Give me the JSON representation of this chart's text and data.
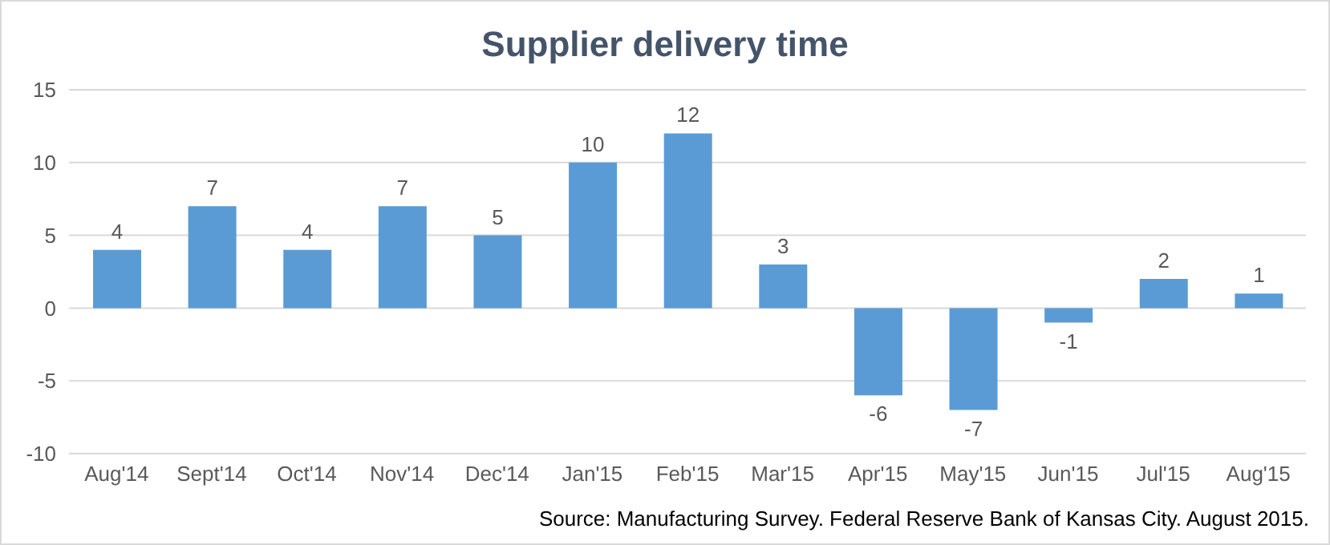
{
  "chart_data": {
    "type": "bar",
    "title": "Supplier delivery time",
    "categories": [
      "Aug'14",
      "Sept'14",
      "Oct'14",
      "Nov'14",
      "Dec'14",
      "Jan'15",
      "Feb'15",
      "Mar'15",
      "Apr'15",
      "May'15",
      "Jun'15",
      "Jul'15",
      "Aug'15"
    ],
    "values": [
      4,
      7,
      4,
      7,
      5,
      10,
      12,
      3,
      -6,
      -7,
      -1,
      2,
      1
    ],
    "color": "#5b9bd5",
    "ylim": [
      -10,
      15
    ],
    "yticks": [
      -10,
      -5,
      0,
      5,
      10,
      15
    ],
    "grid": "y",
    "data_labels": true,
    "annotations": [
      "Source: Manufacturing Survey. Federal Reserve Bank of Kansas City. August 2015."
    ]
  }
}
